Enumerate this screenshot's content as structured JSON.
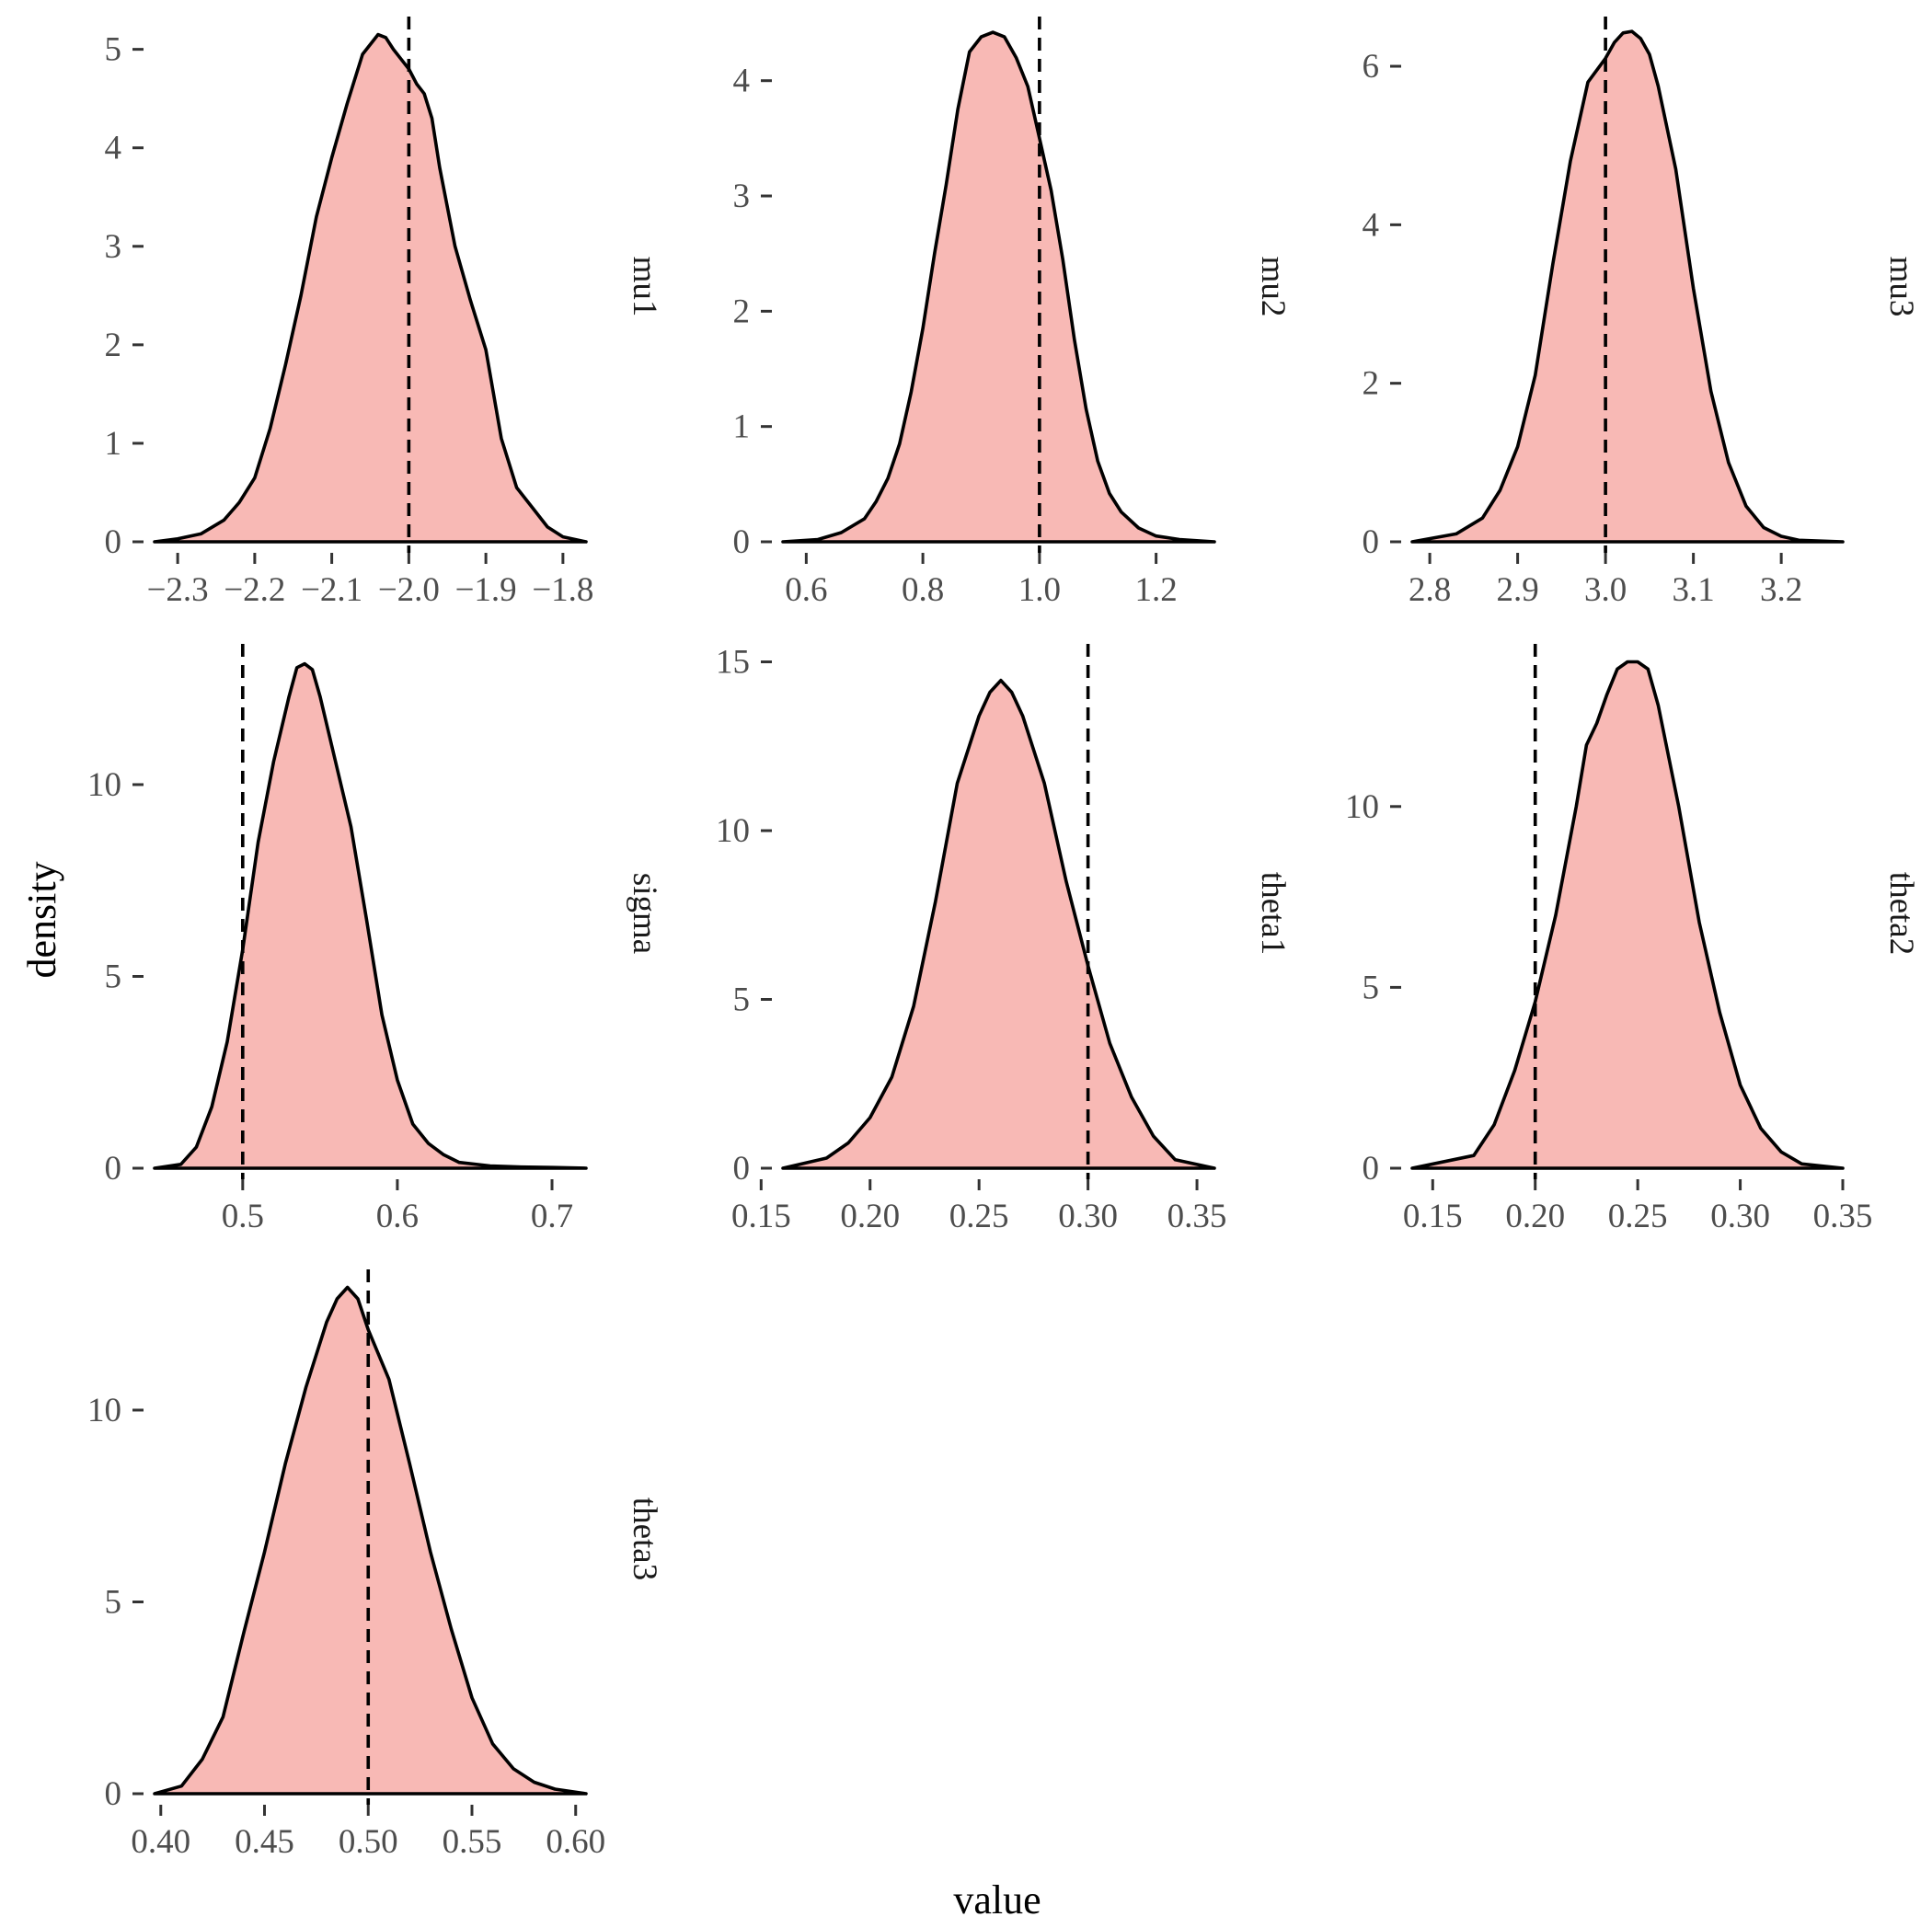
{
  "chart_data": {
    "type": "area",
    "xlabel": "value",
    "ylabel": "density",
    "fill_color": "#f8b9b5",
    "line_color": "#000000",
    "legend": "none",
    "grid": false,
    "panels": [
      {
        "name": "mu1",
        "xlim": [
          -2.33,
          -1.77
        ],
        "ylim": [
          0,
          5.15
        ],
        "x_ticks": [
          -2.3,
          -2.2,
          -2.1,
          -2.0,
          -1.9,
          -1.8
        ],
        "x_tick_labels": [
          "−2.3",
          "−2.2",
          "−2.1",
          "−2.0",
          "−1.9",
          "−1.8"
        ],
        "y_ticks": [
          0,
          1,
          2,
          3,
          4,
          5
        ],
        "y_tick_labels": [
          "0",
          "1",
          "2",
          "3",
          "4",
          "5"
        ],
        "true_value": -2.0,
        "x": [
          -2.33,
          -2.3,
          -2.27,
          -2.24,
          -2.22,
          -2.2,
          -2.18,
          -2.16,
          -2.14,
          -2.12,
          -2.1,
          -2.08,
          -2.06,
          -2.04,
          -2.03,
          -2.02,
          -2.01,
          -2.0,
          -1.99,
          -1.98,
          -1.97,
          -1.96,
          -1.94,
          -1.92,
          -1.9,
          -1.88,
          -1.86,
          -1.84,
          -1.82,
          -1.8,
          -1.77
        ],
        "y": [
          0.0,
          0.03,
          0.08,
          0.22,
          0.4,
          0.65,
          1.15,
          1.8,
          2.5,
          3.3,
          3.9,
          4.45,
          4.95,
          5.15,
          5.12,
          5.0,
          4.9,
          4.8,
          4.65,
          4.55,
          4.3,
          3.8,
          3.0,
          2.45,
          1.95,
          1.05,
          0.55,
          0.35,
          0.15,
          0.05,
          0.0
        ]
      },
      {
        "name": "mu2",
        "xlim": [
          0.56,
          1.3
        ],
        "ylim": [
          0,
          4.4
        ],
        "x_ticks": [
          0.6,
          0.8,
          1.0,
          1.2
        ],
        "x_tick_labels": [
          "0.6",
          "0.8",
          "1.0",
          "1.2"
        ],
        "y_ticks": [
          0,
          1,
          2,
          3,
          4
        ],
        "y_tick_labels": [
          "0",
          "1",
          "2",
          "3",
          "4"
        ],
        "true_value": 1.0,
        "x": [
          0.56,
          0.62,
          0.66,
          0.7,
          0.72,
          0.74,
          0.76,
          0.78,
          0.8,
          0.82,
          0.84,
          0.86,
          0.88,
          0.9,
          0.92,
          0.94,
          0.96,
          0.98,
          1.0,
          1.02,
          1.04,
          1.06,
          1.08,
          1.1,
          1.12,
          1.14,
          1.17,
          1.2,
          1.24,
          1.3
        ],
        "y": [
          0.0,
          0.02,
          0.08,
          0.2,
          0.35,
          0.55,
          0.85,
          1.3,
          1.85,
          2.5,
          3.1,
          3.75,
          4.25,
          4.38,
          4.42,
          4.38,
          4.2,
          3.95,
          3.5,
          3.05,
          2.45,
          1.75,
          1.15,
          0.7,
          0.42,
          0.26,
          0.12,
          0.05,
          0.02,
          0.0
        ]
      },
      {
        "name": "mu3",
        "xlim": [
          2.78,
          3.27
        ],
        "ylim": [
          0,
          6.4
        ],
        "x_ticks": [
          2.8,
          2.9,
          3.0,
          3.1,
          3.2
        ],
        "x_tick_labels": [
          "2.8",
          "2.9",
          "3.0",
          "3.1",
          "3.2"
        ],
        "y_ticks": [
          0,
          2,
          4,
          6
        ],
        "y_tick_labels": [
          "0",
          "2",
          "4",
          "6"
        ],
        "true_value": 3.0,
        "x": [
          2.78,
          2.83,
          2.86,
          2.88,
          2.9,
          2.92,
          2.94,
          2.96,
          2.98,
          3.0,
          3.01,
          3.02,
          3.03,
          3.04,
          3.05,
          3.06,
          3.08,
          3.1,
          3.12,
          3.14,
          3.16,
          3.18,
          3.2,
          3.22,
          3.27
        ],
        "y": [
          0.0,
          0.1,
          0.3,
          0.65,
          1.2,
          2.1,
          3.5,
          4.8,
          5.8,
          6.1,
          6.3,
          6.42,
          6.44,
          6.35,
          6.15,
          5.75,
          4.7,
          3.2,
          1.9,
          1.0,
          0.45,
          0.18,
          0.07,
          0.02,
          0.0
        ]
      },
      {
        "name": "sigma",
        "xlim": [
          0.443,
          0.722
        ],
        "ylim": [
          0,
          13.2
        ],
        "x_ticks": [
          0.5,
          0.6,
          0.7
        ],
        "x_tick_labels": [
          "0.5",
          "0.6",
          "0.7"
        ],
        "y_ticks": [
          0,
          5,
          10
        ],
        "y_tick_labels": [
          "0",
          "5",
          "10"
        ],
        "true_value": 0.5,
        "x": [
          0.443,
          0.46,
          0.47,
          0.48,
          0.49,
          0.5,
          0.51,
          0.52,
          0.53,
          0.535,
          0.54,
          0.545,
          0.55,
          0.56,
          0.57,
          0.58,
          0.59,
          0.6,
          0.61,
          0.62,
          0.63,
          0.64,
          0.66,
          0.68,
          0.7,
          0.722
        ],
        "y": [
          0.0,
          0.1,
          0.55,
          1.6,
          3.3,
          5.7,
          8.5,
          10.6,
          12.3,
          13.05,
          13.15,
          13.0,
          12.3,
          10.6,
          8.9,
          6.5,
          4.0,
          2.3,
          1.15,
          0.65,
          0.35,
          0.15,
          0.06,
          0.03,
          0.02,
          0.0
        ]
      },
      {
        "name": "theta1",
        "xlim": [
          0.16,
          0.358
        ],
        "ylim": [
          0,
          15
        ],
        "x_ticks": [
          0.15,
          0.2,
          0.25,
          0.3,
          0.35
        ],
        "x_tick_labels": [
          "0.15",
          "0.20",
          "0.25",
          "0.30",
          "0.35"
        ],
        "y_ticks": [
          0,
          5,
          10,
          15
        ],
        "y_tick_labels": [
          "0",
          "5",
          "10",
          "15"
        ],
        "true_value": 0.3,
        "x": [
          0.16,
          0.18,
          0.19,
          0.2,
          0.21,
          0.22,
          0.23,
          0.24,
          0.25,
          0.255,
          0.26,
          0.265,
          0.27,
          0.28,
          0.29,
          0.3,
          0.31,
          0.32,
          0.33,
          0.34,
          0.358
        ],
        "y": [
          0.0,
          0.3,
          0.75,
          1.5,
          2.7,
          4.8,
          7.9,
          11.4,
          13.4,
          14.1,
          14.45,
          14.1,
          13.4,
          11.4,
          8.5,
          6.0,
          3.7,
          2.1,
          0.95,
          0.25,
          0.0
        ]
      },
      {
        "name": "theta2",
        "xlim": [
          0.14,
          0.35
        ],
        "ylim": [
          0,
          14
        ],
        "x_ticks": [
          0.15,
          0.2,
          0.25,
          0.3,
          0.35
        ],
        "x_tick_labels": [
          "0.15",
          "0.20",
          "0.25",
          "0.30",
          "0.35"
        ],
        "y_ticks": [
          0,
          5,
          10
        ],
        "y_tick_labels": [
          "0",
          "5",
          "10"
        ],
        "true_value": 0.2,
        "x": [
          0.14,
          0.17,
          0.18,
          0.19,
          0.2,
          0.21,
          0.22,
          0.225,
          0.23,
          0.235,
          0.24,
          0.245,
          0.25,
          0.255,
          0.26,
          0.27,
          0.28,
          0.29,
          0.3,
          0.31,
          0.32,
          0.33,
          0.35
        ],
        "y": [
          0.0,
          0.35,
          1.2,
          2.7,
          4.6,
          7.0,
          10.0,
          11.7,
          12.3,
          13.1,
          13.8,
          14.0,
          14.0,
          13.8,
          12.8,
          10.0,
          6.8,
          4.3,
          2.3,
          1.1,
          0.45,
          0.12,
          0.0
        ]
      },
      {
        "name": "theta3",
        "xlim": [
          0.397,
          0.605
        ],
        "ylim": [
          0,
          13.2
        ],
        "x_ticks": [
          0.4,
          0.45,
          0.5,
          0.55,
          0.6
        ],
        "x_tick_labels": [
          "0.40",
          "0.45",
          "0.50",
          "0.55",
          "0.60"
        ],
        "y_ticks": [
          0,
          5,
          10
        ],
        "y_tick_labels": [
          "0",
          "5",
          "10"
        ],
        "true_value": 0.5,
        "x": [
          0.397,
          0.41,
          0.42,
          0.43,
          0.44,
          0.45,
          0.46,
          0.47,
          0.48,
          0.485,
          0.49,
          0.495,
          0.5,
          0.51,
          0.52,
          0.53,
          0.54,
          0.55,
          0.56,
          0.57,
          0.58,
          0.59,
          0.605
        ],
        "y": [
          0.0,
          0.2,
          0.9,
          2.0,
          4.2,
          6.3,
          8.6,
          10.6,
          12.3,
          12.9,
          13.2,
          12.9,
          12.1,
          10.8,
          8.6,
          6.3,
          4.3,
          2.5,
          1.3,
          0.65,
          0.3,
          0.12,
          0.0
        ]
      }
    ]
  }
}
